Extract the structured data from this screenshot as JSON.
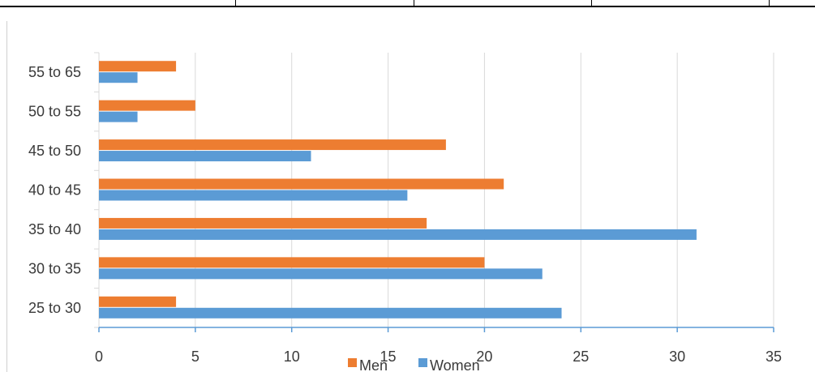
{
  "chart_data": {
    "type": "bar",
    "orientation": "horizontal",
    "categories": [
      "25 to 30",
      "30 to 35",
      "35 to 40",
      "40 to 45",
      "45 to 50",
      "50 to 55",
      "55 to 65"
    ],
    "series": [
      {
        "name": "Men",
        "values": [
          4,
          20,
          17,
          21,
          18,
          5,
          4
        ],
        "color": "#ED7D31"
      },
      {
        "name": "Women",
        "values": [
          24,
          23,
          31,
          16,
          11,
          2,
          2
        ],
        "color": "#5B9BD5"
      }
    ],
    "x_ticks": [
      0,
      5,
      10,
      15,
      20,
      25,
      30,
      35
    ],
    "xlim": [
      0,
      35
    ],
    "grid": "vertical",
    "legend_placement": "bottom",
    "colors": {
      "grid": "#D9D9D9",
      "axis": "#5B9BD5",
      "text": "#3A3A3A",
      "border": "#000000"
    }
  }
}
